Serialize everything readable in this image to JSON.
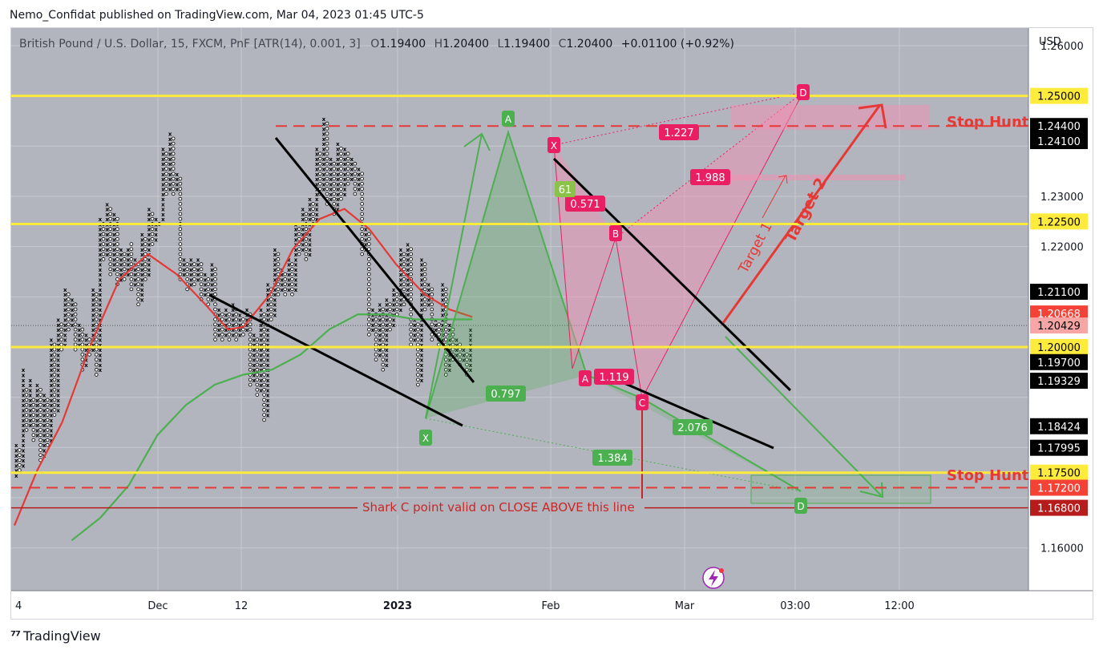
{
  "publisher_line": "Nemo_Confidat published on TradingView.com, Mar 04, 2023 01:45 UTC-5",
  "brand": "TradingView",
  "legend": {
    "symbol": "British Pound / U.S. Dollar, 15, FXCM, PnF [ATR(14), 0.001, 3]",
    "o_label": "O",
    "o_value": "1.19400",
    "h_label": "H",
    "h_value": "1.20400",
    "l_label": "L",
    "l_value": "1.19400",
    "c_label": "C",
    "c_value": "1.20400",
    "change": "+0.01100 (+0.92%)"
  },
  "currency": "USD",
  "colors": {
    "plot_bg": "#b2b5be",
    "yellow": "#ffeb3b",
    "red": "#e53935",
    "green": "#4caf50",
    "pink": "#e91e63",
    "black": "#000000"
  },
  "chart_data": {
    "type": "pnf",
    "ylim": [
      1.1515,
      1.2635
    ],
    "y_ticks": [
      "1.26000",
      "1.23000",
      "1.22000",
      "1.16000"
    ],
    "x_ticks": [
      "4",
      "Dec",
      "12",
      "2023",
      "Feb",
      "Mar",
      "03:00",
      "12:00"
    ],
    "price_labels": [
      {
        "text": "1.25000",
        "value": 1.25,
        "style": "yellow"
      },
      {
        "text": "1.24400",
        "value": 1.244,
        "style": "black"
      },
      {
        "text": "1.24100",
        "value": 1.241,
        "style": "black"
      },
      {
        "text": "1.22500",
        "value": 1.225,
        "style": "yellow"
      },
      {
        "text": "1.21100",
        "value": 1.211,
        "style": "black"
      },
      {
        "text": "1.20668",
        "value": 1.20668,
        "style": "red"
      },
      {
        "text": "1.20429",
        "value": 1.20429,
        "style": "pink"
      },
      {
        "text": "1.20000",
        "value": 1.2,
        "style": "yellow"
      },
      {
        "text": "1.19700",
        "value": 1.197,
        "style": "black"
      },
      {
        "text": "1.19329",
        "value": 1.19329,
        "style": "black"
      },
      {
        "text": "1.18424",
        "value": 1.18424,
        "style": "black"
      },
      {
        "text": "1.17995",
        "value": 1.17995,
        "style": "black"
      },
      {
        "text": "1.17500",
        "value": 1.175,
        "style": "yellow"
      },
      {
        "text": "1.17200",
        "value": 1.172,
        "style": "red"
      },
      {
        "text": "1.16800",
        "value": 1.168,
        "style": "darkred"
      }
    ],
    "horizontal_levels": [
      {
        "value": 1.25,
        "style": "yellow-solid"
      },
      {
        "value": 1.2245,
        "style": "yellow-solid"
      },
      {
        "value": 1.2,
        "style": "yellow-solid"
      },
      {
        "value": 1.175,
        "style": "yellow-solid"
      },
      {
        "value": 1.244,
        "style": "red-dashed"
      },
      {
        "value": 1.172,
        "style": "red-dashed"
      },
      {
        "value": 1.168,
        "style": "darkred-solid"
      }
    ],
    "annotations": {
      "stop_hunt_top": "Stop Hunt",
      "stop_hunt_bottom": "Stop Hunt",
      "shark_note": "Shark C point valid on CLOSE ABOVE this line",
      "target1": "Target 1",
      "target2": "Target 2",
      "fib_labels": [
        "1.227",
        "1.988",
        "0.571",
        "61",
        "1.119",
        "0.797",
        "2.076",
        "1.384"
      ],
      "point_labels": [
        "D",
        "A",
        "X",
        "B",
        "A",
        "C",
        "X",
        "D"
      ]
    },
    "columns": [
      {
        "t": "X",
        "lo": 1.174,
        "hi": 1.181
      },
      {
        "t": "O",
        "lo": 1.175,
        "hi": 1.18
      },
      {
        "t": "X",
        "lo": 1.176,
        "hi": 1.196
      },
      {
        "t": "O",
        "lo": 1.183,
        "hi": 1.192
      },
      {
        "t": "X",
        "lo": 1.184,
        "hi": 1.194
      },
      {
        "t": "O",
        "lo": 1.181,
        "hi": 1.19
      },
      {
        "t": "X",
        "lo": 1.182,
        "hi": 1.193
      },
      {
        "t": "O",
        "lo": 1.177,
        "hi": 1.192
      },
      {
        "t": "X",
        "lo": 1.178,
        "hi": 1.191
      },
      {
        "t": "O",
        "lo": 1.18,
        "hi": 1.19
      },
      {
        "t": "X",
        "lo": 1.181,
        "hi": 1.202
      },
      {
        "t": "O",
        "lo": 1.186,
        "hi": 1.201
      },
      {
        "t": "X",
        "lo": 1.187,
        "hi": 1.206
      },
      {
        "t": "O",
        "lo": 1.199,
        "hi": 1.205
      },
      {
        "t": "X",
        "lo": 1.2,
        "hi": 1.212
      },
      {
        "t": "O",
        "lo": 1.203,
        "hi": 1.211
      },
      {
        "t": "X",
        "lo": 1.204,
        "hi": 1.21
      },
      {
        "t": "O",
        "lo": 1.199,
        "hi": 1.209
      },
      {
        "t": "X",
        "lo": 1.2,
        "hi": 1.205
      },
      {
        "t": "O",
        "lo": 1.195,
        "hi": 1.204
      },
      {
        "t": "X",
        "lo": 1.196,
        "hi": 1.203
      },
      {
        "t": "O",
        "lo": 1.198,
        "hi": 1.202
      },
      {
        "t": "X",
        "lo": 1.199,
        "hi": 1.212
      },
      {
        "t": "O",
        "lo": 1.194,
        "hi": 1.211
      },
      {
        "t": "X",
        "lo": 1.195,
        "hi": 1.226
      },
      {
        "t": "O",
        "lo": 1.217,
        "hi": 1.225
      },
      {
        "t": "X",
        "lo": 1.218,
        "hi": 1.229
      },
      {
        "t": "O",
        "lo": 1.214,
        "hi": 1.228
      },
      {
        "t": "X",
        "lo": 1.215,
        "hi": 1.227
      },
      {
        "t": "O",
        "lo": 1.212,
        "hi": 1.226
      },
      {
        "t": "X",
        "lo": 1.213,
        "hi": 1.22
      },
      {
        "t": "O",
        "lo": 1.213,
        "hi": 1.219
      },
      {
        "t": "X",
        "lo": 1.214,
        "hi": 1.22
      },
      {
        "t": "O",
        "lo": 1.211,
        "hi": 1.221
      },
      {
        "t": "X",
        "lo": 1.212,
        "hi": 1.218
      },
      {
        "t": "O",
        "lo": 1.208,
        "hi": 1.217
      },
      {
        "t": "X",
        "lo": 1.209,
        "hi": 1.223
      },
      {
        "t": "O",
        "lo": 1.213,
        "hi": 1.222
      },
      {
        "t": "X",
        "lo": 1.214,
        "hi": 1.228
      },
      {
        "t": "O",
        "lo": 1.22,
        "hi": 1.227
      },
      {
        "t": "X",
        "lo": 1.221,
        "hi": 1.226
      },
      {
        "t": "O",
        "lo": 1.224,
        "hi": 1.225
      },
      {
        "t": "X",
        "lo": 1.225,
        "hi": 1.24
      },
      {
        "t": "O",
        "lo": 1.23,
        "hi": 1.239
      },
      {
        "t": "X",
        "lo": 1.231,
        "hi": 1.243
      },
      {
        "t": "O",
        "lo": 1.23,
        "hi": 1.242
      },
      {
        "t": "X",
        "lo": 1.231,
        "hi": 1.235
      },
      {
        "t": "O",
        "lo": 1.213,
        "hi": 1.234
      },
      {
        "t": "X",
        "lo": 1.214,
        "hi": 1.218
      },
      {
        "t": "O",
        "lo": 1.211,
        "hi": 1.217
      },
      {
        "t": "X",
        "lo": 1.212,
        "hi": 1.218
      },
      {
        "t": "O",
        "lo": 1.212,
        "hi": 1.217
      },
      {
        "t": "X",
        "lo": 1.213,
        "hi": 1.218
      },
      {
        "t": "O",
        "lo": 1.209,
        "hi": 1.217
      },
      {
        "t": "X",
        "lo": 1.21,
        "hi": 1.215
      },
      {
        "t": "O",
        "lo": 1.208,
        "hi": 1.214
      },
      {
        "t": "X",
        "lo": 1.209,
        "hi": 1.217
      },
      {
        "t": "O",
        "lo": 1.201,
        "hi": 1.216
      },
      {
        "t": "X",
        "lo": 1.202,
        "hi": 1.208
      },
      {
        "t": "O",
        "lo": 1.201,
        "hi": 1.207
      },
      {
        "t": "X",
        "lo": 1.202,
        "hi": 1.208
      },
      {
        "t": "O",
        "lo": 1.201,
        "hi": 1.207
      },
      {
        "t": "X",
        "lo": 1.202,
        "hi": 1.209
      },
      {
        "t": "O",
        "lo": 1.201,
        "hi": 1.208
      },
      {
        "t": "X",
        "lo": 1.202,
        "hi": 1.207
      },
      {
        "t": "O",
        "lo": 1.202,
        "hi": 1.206
      },
      {
        "t": "X",
        "lo": 1.203,
        "hi": 1.208
      },
      {
        "t": "O",
        "lo": 1.192,
        "hi": 1.207
      },
      {
        "t": "X",
        "lo": 1.193,
        "hi": 1.203
      },
      {
        "t": "O",
        "lo": 1.19,
        "hi": 1.202
      },
      {
        "t": "X",
        "lo": 1.191,
        "hi": 1.208
      },
      {
        "t": "O",
        "lo": 1.185,
        "hi": 1.207
      },
      {
        "t": "X",
        "lo": 1.186,
        "hi": 1.213
      },
      {
        "t": "O",
        "lo": 1.205,
        "hi": 1.212
      },
      {
        "t": "X",
        "lo": 1.206,
        "hi": 1.22
      },
      {
        "t": "O",
        "lo": 1.21,
        "hi": 1.219
      },
      {
        "t": "X",
        "lo": 1.211,
        "hi": 1.216
      },
      {
        "t": "O",
        "lo": 1.21,
        "hi": 1.215
      },
      {
        "t": "X",
        "lo": 1.211,
        "hi": 1.218
      },
      {
        "t": "O",
        "lo": 1.21,
        "hi": 1.217
      },
      {
        "t": "X",
        "lo": 1.211,
        "hi": 1.225
      },
      {
        "t": "O",
        "lo": 1.218,
        "hi": 1.224
      },
      {
        "t": "X",
        "lo": 1.219,
        "hi": 1.228
      },
      {
        "t": "O",
        "lo": 1.217,
        "hi": 1.227
      },
      {
        "t": "X",
        "lo": 1.218,
        "hi": 1.23
      },
      {
        "t": "O",
        "lo": 1.224,
        "hi": 1.229
      },
      {
        "t": "X",
        "lo": 1.225,
        "hi": 1.24
      },
      {
        "t": "O",
        "lo": 1.23,
        "hi": 1.239
      },
      {
        "t": "X",
        "lo": 1.231,
        "hi": 1.246
      },
      {
        "t": "O",
        "lo": 1.228,
        "hi": 1.245
      },
      {
        "t": "X",
        "lo": 1.229,
        "hi": 1.238
      },
      {
        "t": "O",
        "lo": 1.226,
        "hi": 1.237
      },
      {
        "t": "X",
        "lo": 1.227,
        "hi": 1.241
      },
      {
        "t": "O",
        "lo": 1.229,
        "hi": 1.24
      },
      {
        "t": "X",
        "lo": 1.23,
        "hi": 1.24
      },
      {
        "t": "O",
        "lo": 1.232,
        "hi": 1.239
      },
      {
        "t": "X",
        "lo": 1.233,
        "hi": 1.238
      },
      {
        "t": "O",
        "lo": 1.23,
        "hi": 1.237
      },
      {
        "t": "X",
        "lo": 1.231,
        "hi": 1.236
      },
      {
        "t": "O",
        "lo": 1.218,
        "hi": 1.235
      },
      {
        "t": "X",
        "lo": 1.219,
        "hi": 1.224
      },
      {
        "t": "O",
        "lo": 1.202,
        "hi": 1.223
      },
      {
        "t": "X",
        "lo": 1.203,
        "hi": 1.208
      },
      {
        "t": "O",
        "lo": 1.197,
        "hi": 1.207
      },
      {
        "t": "X",
        "lo": 1.198,
        "hi": 1.209
      },
      {
        "t": "O",
        "lo": 1.195,
        "hi": 1.208
      },
      {
        "t": "X",
        "lo": 1.196,
        "hi": 1.21
      },
      {
        "t": "O",
        "lo": 1.203,
        "hi": 1.209
      },
      {
        "t": "X",
        "lo": 1.204,
        "hi": 1.212
      },
      {
        "t": "O",
        "lo": 1.206,
        "hi": 1.211
      },
      {
        "t": "X",
        "lo": 1.207,
        "hi": 1.22
      },
      {
        "t": "O",
        "lo": 1.208,
        "hi": 1.219
      },
      {
        "t": "X",
        "lo": 1.209,
        "hi": 1.221
      },
      {
        "t": "O",
        "lo": 1.2,
        "hi": 1.22
      },
      {
        "t": "X",
        "lo": 1.201,
        "hi": 1.206
      },
      {
        "t": "O",
        "lo": 1.192,
        "hi": 1.205
      },
      {
        "t": "X",
        "lo": 1.193,
        "hi": 1.218
      },
      {
        "t": "O",
        "lo": 1.207,
        "hi": 1.217
      },
      {
        "t": "X",
        "lo": 1.208,
        "hi": 1.213
      },
      {
        "t": "O",
        "lo": 1.201,
        "hi": 1.212
      },
      {
        "t": "X",
        "lo": 1.202,
        "hi": 1.206
      },
      {
        "t": "O",
        "lo": 1.2,
        "hi": 1.205
      },
      {
        "t": "X",
        "lo": 1.201,
        "hi": 1.213
      },
      {
        "t": "O",
        "lo": 1.194,
        "hi": 1.212
      },
      {
        "t": "X",
        "lo": 1.195,
        "hi": 1.205
      },
      {
        "t": "O",
        "lo": 1.197,
        "hi": 1.204
      },
      {
        "t": "X",
        "lo": 1.198,
        "hi": 1.202
      },
      {
        "t": "O",
        "lo": 1.196,
        "hi": 1.201
      },
      {
        "t": "X",
        "lo": 1.197,
        "hi": 1.2
      },
      {
        "t": "O",
        "lo": 1.194,
        "hi": 1.199
      },
      {
        "t": "X",
        "lo": 1.195,
        "hi": 1.204
      }
    ],
    "overlay_series": [
      {
        "color": "#e53935",
        "points": [
          [
            0,
            1.1645
          ],
          [
            12,
            1.1755
          ],
          [
            25,
            1.185
          ],
          [
            40,
            1.2005
          ],
          [
            55,
            1.2135
          ],
          [
            70,
            1.2185
          ],
          [
            85,
            1.2145
          ],
          [
            100,
            1.2085
          ],
          [
            112,
            1.2035
          ],
          [
            120,
            1.204
          ],
          [
            134,
            1.2105
          ],
          [
            146,
            1.2195
          ],
          [
            160,
            1.2255
          ],
          [
            173,
            1.2275
          ],
          [
            186,
            1.2235
          ],
          [
            200,
            1.2165
          ],
          [
            215,
            1.2105
          ],
          [
            228,
            1.2075
          ],
          [
            240,
            1.206
          ]
        ]
      },
      {
        "color": "#4caf50",
        "points": [
          [
            30,
            1.1615
          ],
          [
            45,
            1.166
          ],
          [
            60,
            1.1725
          ],
          [
            75,
            1.1825
          ],
          [
            90,
            1.1885
          ],
          [
            105,
            1.1925
          ],
          [
            120,
            1.1945
          ],
          [
            135,
            1.1955
          ],
          [
            150,
            1.1985
          ],
          [
            165,
            1.2035
          ],
          [
            180,
            1.2065
          ],
          [
            195,
            1.2065
          ],
          [
            210,
            1.2055
          ],
          [
            225,
            1.2055
          ],
          [
            240,
            1.2055
          ]
        ]
      }
    ]
  }
}
